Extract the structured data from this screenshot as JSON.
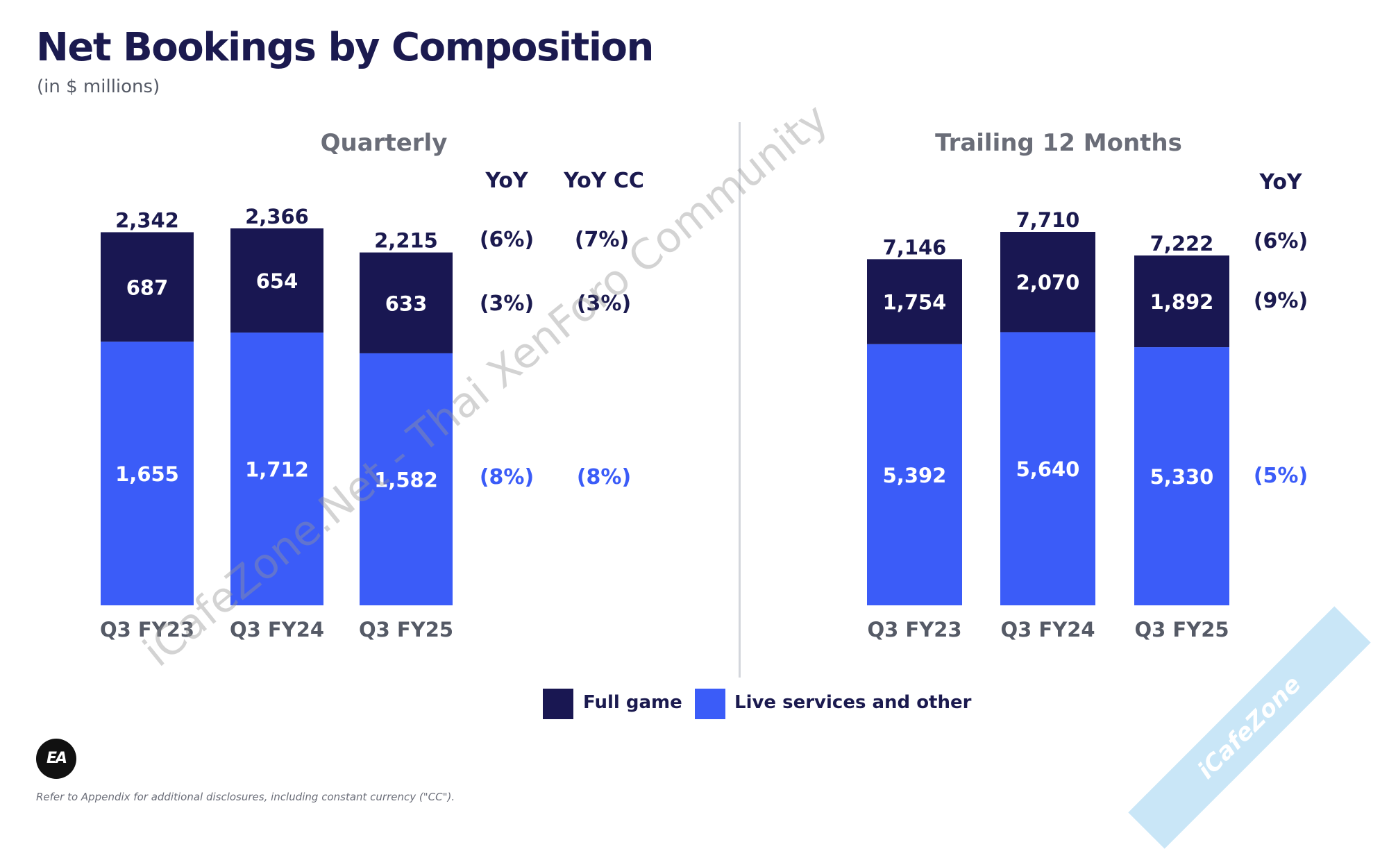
{
  "title": "Net Bookings by Composition",
  "subtitle": "(in $ millions)",
  "colors": {
    "full_game": "#191752",
    "live_services": "#3b5cf8",
    "title": "#1b1a4f",
    "divider": "#d3d6dc"
  },
  "chart_data": [
    {
      "type": "bar",
      "stacked": true,
      "title": "Quarterly",
      "categories": [
        "Q3 FY23",
        "Q3 FY24",
        "Q3 FY25"
      ],
      "series": [
        {
          "name": "Live services and other",
          "values": [
            1655,
            1712,
            1582
          ]
        },
        {
          "name": "Full game",
          "values": [
            687,
            654,
            633
          ]
        }
      ],
      "value_labels": {
        "live": [
          "1,655",
          "1,712",
          "1,582"
        ],
        "full": [
          "687",
          "654",
          "633"
        ],
        "totals": [
          "2,342",
          "2,366",
          "2,215"
        ]
      },
      "yoy_header": "YoY",
      "yoy_cc_header": "YoY CC",
      "yoy": {
        "total": "(6%)",
        "full": "(3%)",
        "live": "(8%)"
      },
      "yoy_cc": {
        "total": "(7%)",
        "full": "(3%)",
        "live": "(8%)"
      },
      "ylim": [
        0,
        2366
      ]
    },
    {
      "type": "bar",
      "stacked": true,
      "title": "Trailing 12 Months",
      "categories": [
        "Q3 FY23",
        "Q3 FY24",
        "Q3 FY25"
      ],
      "series": [
        {
          "name": "Live services and other",
          "values": [
            5392,
            5640,
            5330
          ]
        },
        {
          "name": "Full game",
          "values": [
            1754,
            2070,
            1892
          ]
        }
      ],
      "value_labels": {
        "live": [
          "5,392",
          "5,640",
          "5,330"
        ],
        "full": [
          "1,754",
          "2,070",
          "1,892"
        ],
        "totals": [
          "7,146",
          "7,710",
          "7,222"
        ]
      },
      "yoy_header": "YoY",
      "yoy": {
        "total": "(6%)",
        "full": "(9%)",
        "live": "(5%)"
      },
      "ylim": [
        0,
        7710
      ]
    }
  ],
  "legend": {
    "full_game": "Full game",
    "live_services": "Live services and other"
  },
  "logo_text": "EA",
  "footnote": "Refer to Appendix for additional disclosures, including constant currency (\"CC\").",
  "watermark": "iCafeZone.Net - Thai XenForo Community",
  "corner_badge": "iCafeZone"
}
